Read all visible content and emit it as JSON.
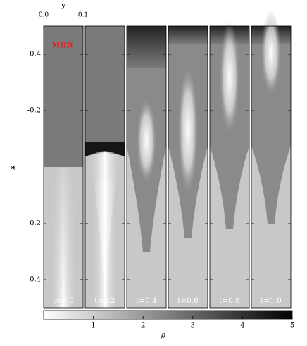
{
  "chart_data": {
    "type": "image-panels",
    "annotation": "MHD",
    "xlabel": "y",
    "xlim": [
      0,
      0.1
    ],
    "xticks": [
      {
        "value": 0,
        "label": "0.0"
      },
      {
        "value": 0.1,
        "label": "0.1"
      }
    ],
    "ylabel": "x",
    "ylim": [
      -0.5,
      0.5
    ],
    "yticks": [
      -0.4,
      -0.2,
      0.2,
      0.4
    ],
    "panels": [
      "t=0.0",
      "t=0.2",
      "t=0.4",
      "t=0.6",
      "t=0.8",
      "t=1.0"
    ],
    "colorbar_label": "ρ",
    "clim": [
      0,
      5
    ],
    "cticks": [
      1,
      2,
      3,
      4,
      5
    ]
  }
}
